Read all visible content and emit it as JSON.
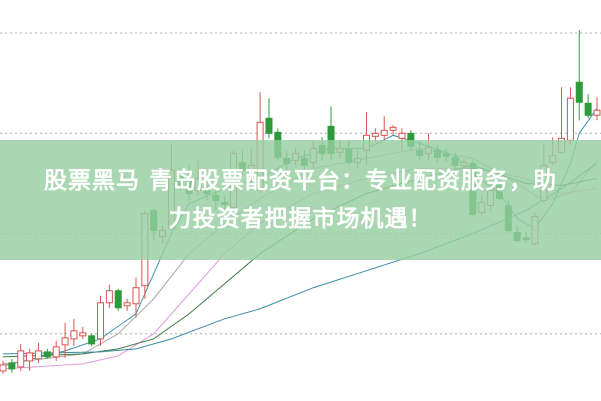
{
  "banner": {
    "line1": "股票黑马 青岛股票配资平台：专业配资服务，助",
    "line2": "力投资者把握市场机遇！",
    "background": "#96cea0"
  },
  "chart_data": {
    "type": "candlestick",
    "title": "",
    "xlabel": "",
    "ylabel": "",
    "ylim": [
      3.3,
      43.3
    ],
    "grid": {
      "horizontal": true,
      "style": "dotted",
      "levels": [
        10,
        20,
        30,
        40
      ]
    },
    "colors": {
      "up": "#d9544f",
      "down": "#2f9a3c",
      "grid": "#b5b5b5"
    },
    "candles_ohlc": [
      [
        6.3,
        7.3,
        6.0,
        6.9
      ],
      [
        7.1,
        7.5,
        6.1,
        6.5
      ],
      [
        6.7,
        9.0,
        6.3,
        8.3
      ],
      [
        7.3,
        8.5,
        6.3,
        8.1
      ],
      [
        7.5,
        9.1,
        7.1,
        8.3
      ],
      [
        8.2,
        8.5,
        7.5,
        7.7
      ],
      [
        7.7,
        9.3,
        7.3,
        8.7
      ],
      [
        8.9,
        11.1,
        7.6,
        9.6
      ],
      [
        9.5,
        11.5,
        8.8,
        10.3
      ],
      [
        9.8,
        10.7,
        9.5,
        10.1
      ],
      [
        9.8,
        10.0,
        8.8,
        9.0
      ],
      [
        9.5,
        13.8,
        8.8,
        13.1
      ],
      [
        13.1,
        14.9,
        12.6,
        14.3
      ],
      [
        14.3,
        14.5,
        12.3,
        12.6
      ],
      [
        12.8,
        13.5,
        12.3,
        13.1
      ],
      [
        13.0,
        15.6,
        11.6,
        14.6
      ],
      [
        14.8,
        22.3,
        13.5,
        22.0
      ],
      [
        22.3,
        22.5,
        19.3,
        20.3
      ],
      [
        19.7,
        20.8,
        19.0,
        20.3
      ],
      [
        20.6,
        29.0,
        20.3,
        26.3
      ],
      [
        25.8,
        26.6,
        24.3,
        24.8
      ],
      [
        25.3,
        26.8,
        23.3,
        24.0
      ],
      [
        24.3,
        27.3,
        23.8,
        25.5
      ],
      [
        24.6,
        25.3,
        23.3,
        24.0
      ],
      [
        23.8,
        24.5,
        22.3,
        23.3
      ],
      [
        23.1,
        23.8,
        22.3,
        22.9
      ],
      [
        22.6,
        28.3,
        22.3,
        28.0
      ],
      [
        27.1,
        28.3,
        25.8,
        26.3
      ],
      [
        25.8,
        28.5,
        24.3,
        26.8
      ],
      [
        24.3,
        34.1,
        24.0,
        31.1
      ],
      [
        31.5,
        33.5,
        29.5,
        30.0
      ],
      [
        30.1,
        30.5,
        27.3,
        27.6
      ],
      [
        27.5,
        28.3,
        26.3,
        27.0
      ],
      [
        27.3,
        28.5,
        26.8,
        28.0
      ],
      [
        27.5,
        28.3,
        26.1,
        26.8
      ],
      [
        27.1,
        29.3,
        26.5,
        28.5
      ],
      [
        28.8,
        29.6,
        27.3,
        28.0
      ],
      [
        30.7,
        32.7,
        27.3,
        28.0
      ],
      [
        28.1,
        29.3,
        27.5,
        28.5
      ],
      [
        28.4,
        29.3,
        26.8,
        27.1
      ],
      [
        27.1,
        28.3,
        26.5,
        27.5
      ],
      [
        28.3,
        32.1,
        26.8,
        29.8
      ],
      [
        29.7,
        30.5,
        29.3,
        30.0
      ],
      [
        29.8,
        31.7,
        29.3,
        30.3
      ],
      [
        30.3,
        30.8,
        29.8,
        30.6
      ],
      [
        29.5,
        30.5,
        28.3,
        30.0
      ],
      [
        30.0,
        30.3,
        28.3,
        28.7
      ],
      [
        28.3,
        29.3,
        27.3,
        27.8
      ],
      [
        28.0,
        30.0,
        27.3,
        28.6
      ],
      [
        28.3,
        28.8,
        27.1,
        27.6
      ],
      [
        28.0,
        28.5,
        27.1,
        27.7
      ],
      [
        27.6,
        28.1,
        26.3,
        26.8
      ],
      [
        26.8,
        27.5,
        26.5,
        27.1
      ],
      [
        27.0,
        27.3,
        21.7,
        21.9
      ],
      [
        22.1,
        23.8,
        21.8,
        23.1
      ],
      [
        22.8,
        24.8,
        22.3,
        24.3
      ],
      [
        24.8,
        25.3,
        23.3,
        23.5
      ],
      [
        22.8,
        23.3,
        20.1,
        20.3
      ],
      [
        20.1,
        20.8,
        19.1,
        19.3
      ],
      [
        19.6,
        20.1,
        19.0,
        19.4
      ],
      [
        19.0,
        22.1,
        18.8,
        21.7
      ],
      [
        23.3,
        29.0,
        23.1,
        26.8
      ],
      [
        27.1,
        29.6,
        26.8,
        27.8
      ],
      [
        28.1,
        34.6,
        28.0,
        29.5
      ],
      [
        29.3,
        34.6,
        28.8,
        33.5
      ],
      [
        35.1,
        40.3,
        31.3,
        33.1
      ],
      [
        33.0,
        33.9,
        31.5,
        31.8
      ],
      [
        31.8,
        33.6,
        31.3,
        32.3
      ]
    ],
    "moving_averages": [
      {
        "color": "#3f95a8",
        "points": [
          [
            1,
            6.8
          ],
          [
            8,
            8.3
          ],
          [
            12,
            9.5
          ],
          [
            16,
            12
          ],
          [
            18,
            16
          ],
          [
            20,
            20
          ],
          [
            22,
            23
          ],
          [
            26,
            24.5
          ],
          [
            30,
            25.5
          ],
          [
            34,
            27.5
          ],
          [
            38,
            28.5
          ],
          [
            42,
            28.5
          ],
          [
            45,
            29.8
          ],
          [
            48,
            29.0
          ],
          [
            52,
            27.8
          ],
          [
            54,
            26.0
          ],
          [
            57,
            24
          ],
          [
            59,
            21.5
          ],
          [
            61,
            20.5
          ],
          [
            63,
            23
          ],
          [
            65,
            27
          ],
          [
            66,
            30
          ],
          [
            68,
            32.5
          ]
        ]
      },
      {
        "color": "#a9a9a9",
        "points": [
          [
            1,
            7
          ],
          [
            10,
            8
          ],
          [
            14,
            10
          ],
          [
            18,
            13.5
          ],
          [
            22,
            18
          ],
          [
            26,
            21
          ],
          [
            30,
            23.5
          ],
          [
            36,
            26.5
          ],
          [
            42,
            27.5
          ],
          [
            48,
            28.5
          ],
          [
            54,
            27.5
          ],
          [
            58,
            25.5
          ],
          [
            62,
            23.3
          ],
          [
            65,
            24
          ],
          [
            68,
            27.3
          ]
        ]
      },
      {
        "color": "#e39ae0",
        "points": [
          [
            1,
            6.5
          ],
          [
            10,
            7
          ],
          [
            14,
            7.8
          ],
          [
            18,
            10
          ],
          [
            22,
            14
          ],
          [
            26,
            18
          ],
          [
            30,
            21
          ],
          [
            36,
            24
          ],
          [
            42,
            25.5
          ],
          [
            48,
            26.5
          ],
          [
            54,
            26.5
          ],
          [
            60,
            25.5
          ],
          [
            64,
            24
          ],
          [
            68,
            24.5
          ]
        ]
      },
      {
        "color": "#3d7a45",
        "points": [
          [
            1,
            7.7
          ],
          [
            10,
            8.0
          ],
          [
            14,
            8.5
          ],
          [
            18,
            9.5
          ],
          [
            22,
            12
          ],
          [
            26,
            15
          ],
          [
            30,
            18
          ],
          [
            36,
            21.5
          ],
          [
            42,
            24
          ],
          [
            48,
            25.5
          ],
          [
            54,
            26.8
          ],
          [
            60,
            25
          ],
          [
            64,
            24.8
          ],
          [
            68,
            25.5
          ]
        ]
      },
      {
        "color": "#3b8ea6",
        "points": [
          [
            1,
            8
          ],
          [
            12,
            8.2
          ],
          [
            16,
            8.5
          ],
          [
            20,
            9.5
          ],
          [
            26,
            11.5
          ],
          [
            30,
            12.5
          ],
          [
            36,
            14.6
          ],
          [
            42,
            16.3
          ],
          [
            48,
            18.0
          ],
          [
            54,
            20
          ],
          [
            60,
            22.3
          ],
          [
            64,
            24.5
          ],
          [
            68,
            27
          ]
        ]
      }
    ]
  }
}
